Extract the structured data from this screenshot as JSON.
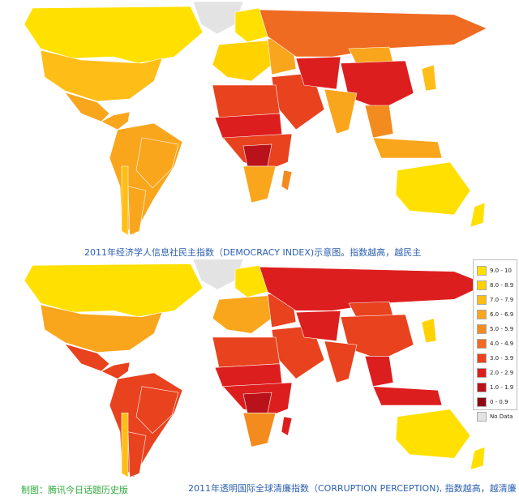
{
  "captions": {
    "top": "2011年经济学人信息社民主指数（DEMOCRACY INDEX)示意图。指数越高，越民主",
    "bottom": "2011年透明国际全球清廉指数（CORRUPTION PERCEPTION), 指数越高，越清廉",
    "credit": "制图：腾讯今日话题历史版"
  },
  "legend": [
    {
      "label": "9.0 - 10",
      "color": "#ffe000"
    },
    {
      "label": "8.0 - 8.9",
      "color": "#ffd200"
    },
    {
      "label": "7.0 - 7.9",
      "color": "#ffbe17"
    },
    {
      "label": "6.0 - 6.9",
      "color": "#f9a61d"
    },
    {
      "label": "5.0 - 5.9",
      "color": "#f38b1e"
    },
    {
      "label": "4.0 - 4.9",
      "color": "#ee6b21"
    },
    {
      "label": "3.0 - 3.9",
      "color": "#e8421e"
    },
    {
      "label": "2.0 - 2.9",
      "color": "#dd1e1e"
    },
    {
      "label": "1.0 - 1.9",
      "color": "#b9121a"
    },
    {
      "label": "0 - 0.9",
      "color": "#8c0a14"
    },
    {
      "label": "No Data",
      "color": "#e3e3e3"
    }
  ],
  "maps": {
    "democracy": {
      "greenland": "#e3e3e3",
      "canada": "#ffe000",
      "usa": "#ffbe17",
      "mexico": "#f9a61d",
      "central_america": "#f9a61d",
      "south_america": "#f9a61d",
      "brazil": "#f9a61d",
      "chile": "#ffbe17",
      "argentina": "#f9a61d",
      "europe": "#ffd200",
      "nordic": "#ffe000",
      "eastern_europe": "#f9a61d",
      "russia": "#ee6b21",
      "middle_east": "#e8421e",
      "north_africa": "#e8421e",
      "africa": "#e8421e",
      "sahel": "#dd1e1e",
      "central_africa": "#b9121a",
      "south_africa": "#f9a61d",
      "madagascar": "#f38b1e",
      "central_asia": "#dd1e1e",
      "mongolia": "#f9a61d",
      "china": "#dd1e1e",
      "india": "#f9a61d",
      "southeast_asia": "#f38b1e",
      "indonesia": "#f9a61d",
      "japan": "#ffbe17",
      "australia": "#ffe000",
      "new_zealand": "#ffe000"
    },
    "corruption": {
      "greenland": "#e3e3e3",
      "canada": "#ffe000",
      "usa": "#f9a61d",
      "mexico": "#e8421e",
      "central_america": "#e8421e",
      "south_america": "#e8421e",
      "brazil": "#e8421e",
      "chile": "#ffbe17",
      "argentina": "#e8421e",
      "europe": "#f9a61d",
      "nordic": "#ffe000",
      "eastern_europe": "#e8421e",
      "russia": "#dd1e1e",
      "middle_east": "#e8421e",
      "north_africa": "#e8421e",
      "africa": "#dd1e1e",
      "sahel": "#dd1e1e",
      "central_africa": "#b9121a",
      "south_africa": "#f38b1e",
      "madagascar": "#dd1e1e",
      "central_asia": "#dd1e1e",
      "mongolia": "#e8421e",
      "china": "#e8421e",
      "india": "#e8421e",
      "southeast_asia": "#dd1e1e",
      "indonesia": "#dd1e1e",
      "japan": "#ffd200",
      "australia": "#ffe000",
      "new_zealand": "#ffe000"
    }
  }
}
